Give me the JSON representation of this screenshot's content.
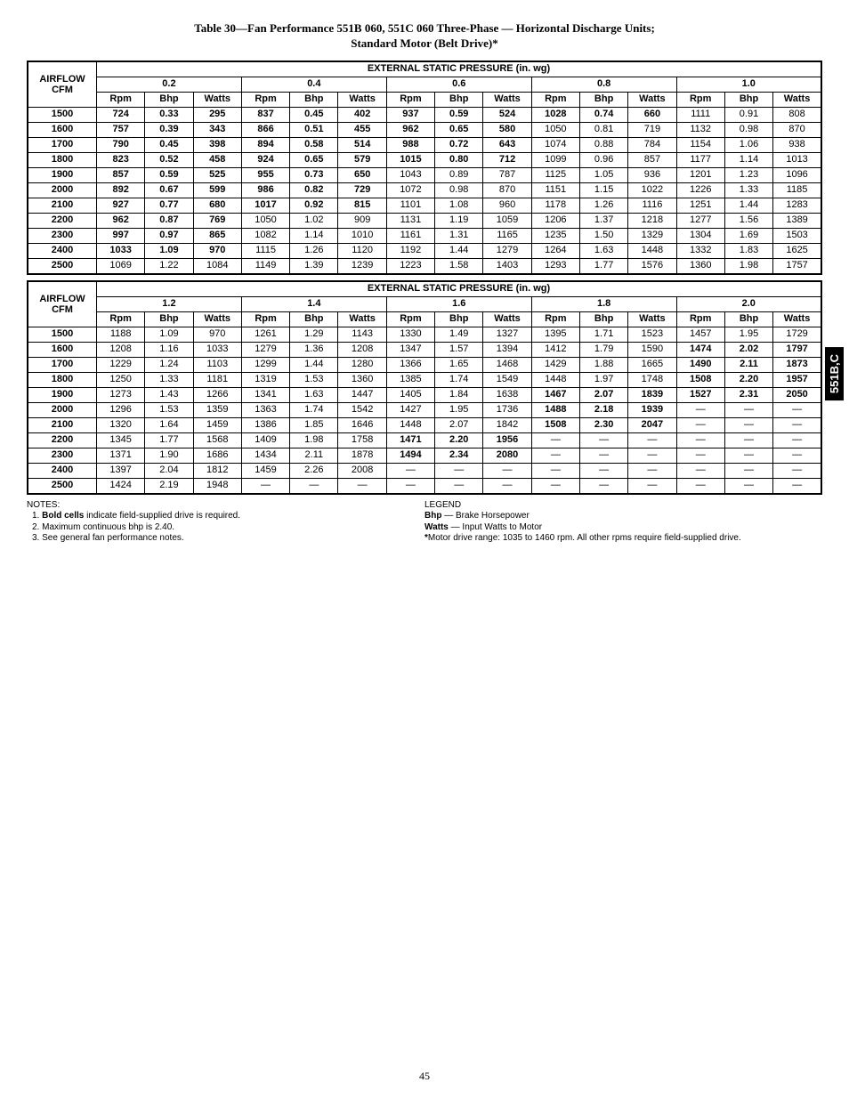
{
  "title_line1": "Table 30—Fan Performance 551B 060, 551C 060 Three-Phase — Horizontal Discharge Units;",
  "title_line2": "Standard Motor (Belt Drive)*",
  "side_tab": "551B,C",
  "page_number": "45",
  "header_main": "EXTERNAL STATIC PRESSURE (in. wg)",
  "airflow_label_1": "AIRFLOW",
  "airflow_label_2": "CFM",
  "sub_rpm": "Rpm",
  "sub_bhp": "Bhp",
  "sub_watts": "Watts",
  "table1": {
    "pressures": [
      "0.2",
      "0.4",
      "0.6",
      "0.8",
      "1.0"
    ],
    "rows": [
      {
        "cfm": "1500",
        "c": [
          [
            "724",
            "0.33",
            "295",
            true
          ],
          [
            "837",
            "0.45",
            "402",
            true
          ],
          [
            "937",
            "0.59",
            "524",
            true
          ],
          [
            "1028",
            "0.74",
            "660",
            true
          ],
          [
            "1111",
            "0.91",
            "808",
            false
          ]
        ]
      },
      {
        "cfm": "1600",
        "c": [
          [
            "757",
            "0.39",
            "343",
            true
          ],
          [
            "866",
            "0.51",
            "455",
            true
          ],
          [
            "962",
            "0.65",
            "580",
            true
          ],
          [
            "1050",
            "0.81",
            "719",
            false
          ],
          [
            "1132",
            "0.98",
            "870",
            false
          ]
        ]
      },
      {
        "cfm": "1700",
        "c": [
          [
            "790",
            "0.45",
            "398",
            true
          ],
          [
            "894",
            "0.58",
            "514",
            true
          ],
          [
            "988",
            "0.72",
            "643",
            true
          ],
          [
            "1074",
            "0.88",
            "784",
            false
          ],
          [
            "1154",
            "1.06",
            "938",
            false
          ]
        ]
      },
      {
        "cfm": "1800",
        "c": [
          [
            "823",
            "0.52",
            "458",
            true
          ],
          [
            "924",
            "0.65",
            "579",
            true
          ],
          [
            "1015",
            "0.80",
            "712",
            true
          ],
          [
            "1099",
            "0.96",
            "857",
            false
          ],
          [
            "1177",
            "1.14",
            "1013",
            false
          ]
        ]
      },
      {
        "cfm": "1900",
        "c": [
          [
            "857",
            "0.59",
            "525",
            true
          ],
          [
            "955",
            "0.73",
            "650",
            true
          ],
          [
            "1043",
            "0.89",
            "787",
            false
          ],
          [
            "1125",
            "1.05",
            "936",
            false
          ],
          [
            "1201",
            "1.23",
            "1096",
            false
          ]
        ]
      },
      {
        "cfm": "2000",
        "c": [
          [
            "892",
            "0.67",
            "599",
            true
          ],
          [
            "986",
            "0.82",
            "729",
            true
          ],
          [
            "1072",
            "0.98",
            "870",
            false
          ],
          [
            "1151",
            "1.15",
            "1022",
            false
          ],
          [
            "1226",
            "1.33",
            "1185",
            false
          ]
        ]
      },
      {
        "cfm": "2100",
        "c": [
          [
            "927",
            "0.77",
            "680",
            true
          ],
          [
            "1017",
            "0.92",
            "815",
            true
          ],
          [
            "1101",
            "1.08",
            "960",
            false
          ],
          [
            "1178",
            "1.26",
            "1116",
            false
          ],
          [
            "1251",
            "1.44",
            "1283",
            false
          ]
        ]
      },
      {
        "cfm": "2200",
        "c": [
          [
            "962",
            "0.87",
            "769",
            true
          ],
          [
            "1050",
            "1.02",
            "909",
            false
          ],
          [
            "1131",
            "1.19",
            "1059",
            false
          ],
          [
            "1206",
            "1.37",
            "1218",
            false
          ],
          [
            "1277",
            "1.56",
            "1389",
            false
          ]
        ]
      },
      {
        "cfm": "2300",
        "c": [
          [
            "997",
            "0.97",
            "865",
            true
          ],
          [
            "1082",
            "1.14",
            "1010",
            false
          ],
          [
            "1161",
            "1.31",
            "1165",
            false
          ],
          [
            "1235",
            "1.50",
            "1329",
            false
          ],
          [
            "1304",
            "1.69",
            "1503",
            false
          ]
        ]
      },
      {
        "cfm": "2400",
        "c": [
          [
            "1033",
            "1.09",
            "970",
            true
          ],
          [
            "1115",
            "1.26",
            "1120",
            false
          ],
          [
            "1192",
            "1.44",
            "1279",
            false
          ],
          [
            "1264",
            "1.63",
            "1448",
            false
          ],
          [
            "1332",
            "1.83",
            "1625",
            false
          ]
        ]
      },
      {
        "cfm": "2500",
        "c": [
          [
            "1069",
            "1.22",
            "1084",
            false
          ],
          [
            "1149",
            "1.39",
            "1239",
            false
          ],
          [
            "1223",
            "1.58",
            "1403",
            false
          ],
          [
            "1293",
            "1.77",
            "1576",
            false
          ],
          [
            "1360",
            "1.98",
            "1757",
            false
          ]
        ]
      }
    ]
  },
  "table2": {
    "pressures": [
      "1.2",
      "1.4",
      "1.6",
      "1.8",
      "2.0"
    ],
    "rows": [
      {
        "cfm": "1500",
        "c": [
          [
            "1188",
            "1.09",
            "970",
            false
          ],
          [
            "1261",
            "1.29",
            "1143",
            false
          ],
          [
            "1330",
            "1.49",
            "1327",
            false
          ],
          [
            "1395",
            "1.71",
            "1523",
            false
          ],
          [
            "1457",
            "1.95",
            "1729",
            false
          ]
        ]
      },
      {
        "cfm": "1600",
        "c": [
          [
            "1208",
            "1.16",
            "1033",
            false
          ],
          [
            "1279",
            "1.36",
            "1208",
            false
          ],
          [
            "1347",
            "1.57",
            "1394",
            false
          ],
          [
            "1412",
            "1.79",
            "1590",
            false
          ],
          [
            "1474",
            "2.02",
            "1797",
            true
          ]
        ]
      },
      {
        "cfm": "1700",
        "c": [
          [
            "1229",
            "1.24",
            "1103",
            false
          ],
          [
            "1299",
            "1.44",
            "1280",
            false
          ],
          [
            "1366",
            "1.65",
            "1468",
            false
          ],
          [
            "1429",
            "1.88",
            "1665",
            false
          ],
          [
            "1490",
            "2.11",
            "1873",
            true
          ]
        ]
      },
      {
        "cfm": "1800",
        "c": [
          [
            "1250",
            "1.33",
            "1181",
            false
          ],
          [
            "1319",
            "1.53",
            "1360",
            false
          ],
          [
            "1385",
            "1.74",
            "1549",
            false
          ],
          [
            "1448",
            "1.97",
            "1748",
            false
          ],
          [
            "1508",
            "2.20",
            "1957",
            true
          ]
        ]
      },
      {
        "cfm": "1900",
        "c": [
          [
            "1273",
            "1.43",
            "1266",
            false
          ],
          [
            "1341",
            "1.63",
            "1447",
            false
          ],
          [
            "1405",
            "1.84",
            "1638",
            false
          ],
          [
            "1467",
            "2.07",
            "1839",
            true
          ],
          [
            "1527",
            "2.31",
            "2050",
            true
          ]
        ]
      },
      {
        "cfm": "2000",
        "c": [
          [
            "1296",
            "1.53",
            "1359",
            false
          ],
          [
            "1363",
            "1.74",
            "1542",
            false
          ],
          [
            "1427",
            "1.95",
            "1736",
            false
          ],
          [
            "1488",
            "2.18",
            "1939",
            true
          ],
          [
            "—",
            "—",
            "—",
            false
          ]
        ]
      },
      {
        "cfm": "2100",
        "c": [
          [
            "1320",
            "1.64",
            "1459",
            false
          ],
          [
            "1386",
            "1.85",
            "1646",
            false
          ],
          [
            "1448",
            "2.07",
            "1842",
            false
          ],
          [
            "1508",
            "2.30",
            "2047",
            true
          ],
          [
            "—",
            "—",
            "—",
            false
          ]
        ]
      },
      {
        "cfm": "2200",
        "c": [
          [
            "1345",
            "1.77",
            "1568",
            false
          ],
          [
            "1409",
            "1.98",
            "1758",
            false
          ],
          [
            "1471",
            "2.20",
            "1956",
            true
          ],
          [
            "—",
            "—",
            "—",
            false
          ],
          [
            "—",
            "—",
            "—",
            false
          ]
        ]
      },
      {
        "cfm": "2300",
        "c": [
          [
            "1371",
            "1.90",
            "1686",
            false
          ],
          [
            "1434",
            "2.11",
            "1878",
            false
          ],
          [
            "1494",
            "2.34",
            "2080",
            true
          ],
          [
            "—",
            "—",
            "—",
            false
          ],
          [
            "—",
            "—",
            "—",
            false
          ]
        ]
      },
      {
        "cfm": "2400",
        "c": [
          [
            "1397",
            "2.04",
            "1812",
            false
          ],
          [
            "1459",
            "2.26",
            "2008",
            false
          ],
          [
            "—",
            "—",
            "—",
            false
          ],
          [
            "—",
            "—",
            "—",
            false
          ],
          [
            "—",
            "—",
            "—",
            false
          ]
        ]
      },
      {
        "cfm": "2500",
        "c": [
          [
            "1424",
            "2.19",
            "1948",
            false
          ],
          [
            "—",
            "—",
            "—",
            false
          ],
          [
            "—",
            "—",
            "—",
            false
          ],
          [
            "—",
            "—",
            "—",
            false
          ],
          [
            "—",
            "—",
            "—",
            false
          ]
        ]
      }
    ]
  },
  "notes_title": "NOTES:",
  "note1a": "1.  ",
  "note1b": "Bold cells",
  "note1c": " indicate field-supplied drive is required.",
  "note2": "2.  Maximum continuous bhp is 2.40.",
  "note3": "3.  See general fan performance notes.",
  "legend_title": "LEGEND",
  "legend_bhp_b": "Bhp",
  "legend_bhp_t": " — Brake Horsepower",
  "legend_watts_b": "Watts",
  "legend_watts_t": " — Input Watts to Motor",
  "legend_star_b": "*",
  "legend_star_t": "Motor drive range: 1035 to 1460 rpm. All other rpms require field-supplied drive."
}
